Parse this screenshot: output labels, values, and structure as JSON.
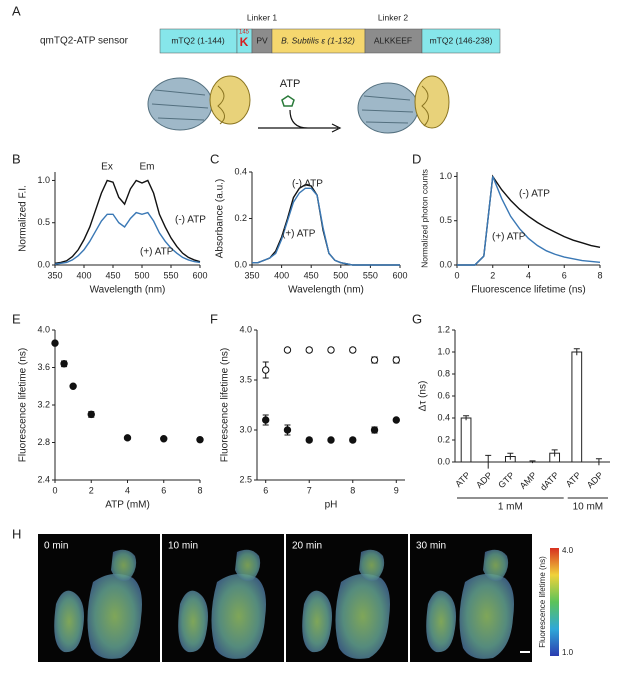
{
  "panel_labels": [
    "A",
    "B",
    "C",
    "D",
    "E",
    "F",
    "G",
    "H"
  ],
  "construct": {
    "name": "qmTQ2-ATP sensor",
    "linker1": "Linker 1",
    "linker2": "Linker 2",
    "segments": [
      "mTQ2 (1-144)",
      "K",
      "PV",
      "B. Subtilis ε (1-132)",
      "ALKKEEF",
      "mTQ2 (146-238)"
    ],
    "residue": "145",
    "ligand": "ATP"
  },
  "chart_data": [
    {
      "type": "line",
      "panel": "B",
      "x_label": "Wavelength (nm)",
      "y_label": "Normalized F.I.",
      "annotations": [
        "Ex",
        "Em"
      ],
      "x": [
        350,
        360,
        370,
        380,
        390,
        400,
        410,
        420,
        430,
        440,
        450,
        460,
        470,
        480,
        490,
        500,
        510,
        520,
        530,
        540,
        550,
        560,
        570,
        580,
        590,
        600
      ],
      "series": [
        {
          "name": "(-) ATP",
          "color": "#111111",
          "values": [
            0.02,
            0.03,
            0.05,
            0.1,
            0.18,
            0.3,
            0.45,
            0.65,
            0.85,
            1.0,
            0.98,
            0.8,
            0.72,
            0.9,
            1.0,
            0.97,
            1.0,
            0.85,
            0.6,
            0.45,
            0.32,
            0.22,
            0.14,
            0.09,
            0.06,
            0.04
          ]
        },
        {
          "name": "(+) ATP",
          "color": "#3a78b5",
          "values": [
            0.01,
            0.02,
            0.03,
            0.06,
            0.11,
            0.18,
            0.28,
            0.4,
            0.52,
            0.6,
            0.6,
            0.5,
            0.45,
            0.55,
            0.62,
            0.6,
            0.62,
            0.52,
            0.38,
            0.28,
            0.2,
            0.14,
            0.09,
            0.06,
            0.04,
            0.03
          ]
        }
      ],
      "xlim": [
        350,
        600
      ],
      "xticks": [
        350,
        400,
        450,
        500,
        550,
        600
      ],
      "ylim": [
        0,
        1.1
      ],
      "yticks": [
        {
          "value": 0,
          "label": "0.0"
        },
        0.5,
        {
          "value": 1,
          "label": "1.0"
        }
      ]
    },
    {
      "type": "line",
      "panel": "C",
      "x_label": "Wavelength (nm)",
      "y_label": "Absorbance (a.u.)",
      "x": [
        350,
        360,
        370,
        380,
        390,
        400,
        410,
        420,
        430,
        440,
        450,
        460,
        470,
        480,
        490,
        500,
        510,
        520,
        530,
        540,
        550,
        560,
        570,
        580,
        590,
        600
      ],
      "series": [
        {
          "name": "(-) ATP",
          "color": "#111111",
          "values": [
            0.01,
            0.01,
            0.02,
            0.03,
            0.06,
            0.12,
            0.2,
            0.29,
            0.33,
            0.345,
            0.34,
            0.3,
            0.15,
            0.05,
            0.02,
            0.01,
            0.005,
            0,
            0,
            0,
            0,
            0,
            0,
            0,
            0,
            0
          ]
        },
        {
          "name": "(+) ATP",
          "color": "#3a78b5",
          "values": [
            0.01,
            0.01,
            0.02,
            0.03,
            0.05,
            0.11,
            0.19,
            0.27,
            0.31,
            0.33,
            0.33,
            0.3,
            0.16,
            0.05,
            0.02,
            0.01,
            0.005,
            0,
            0,
            0,
            0,
            0,
            0,
            0,
            0,
            0
          ]
        }
      ],
      "xlim": [
        350,
        600
      ],
      "xticks": [
        350,
        400,
        450,
        500,
        550,
        600
      ],
      "ylim": [
        0,
        0.4
      ],
      "yticks": [
        {
          "value": 0,
          "label": "0.0"
        },
        0.2,
        0.4
      ]
    },
    {
      "type": "line",
      "panel": "D",
      "x_label": "Fluorescence lifetime (ns)",
      "y_label": "Normalized photon counts",
      "x": [
        0,
        0.5,
        1,
        1.5,
        2,
        2.5,
        3,
        3.5,
        4,
        4.5,
        5,
        5.5,
        6,
        6.5,
        7,
        7.5,
        8
      ],
      "series": [
        {
          "name": "(-) ATP",
          "color": "#111111",
          "values": [
            0,
            0,
            0,
            0.1,
            1.0,
            0.85,
            0.73,
            0.63,
            0.55,
            0.48,
            0.42,
            0.37,
            0.32,
            0.28,
            0.25,
            0.22,
            0.2
          ]
        },
        {
          "name": "(+) ATP",
          "color": "#3a78b5",
          "values": [
            0,
            0,
            0,
            0.1,
            1.0,
            0.75,
            0.55,
            0.41,
            0.3,
            0.22,
            0.16,
            0.12,
            0.09,
            0.07,
            0.05,
            0.04,
            0.03
          ]
        }
      ],
      "xlim": [
        0,
        8
      ],
      "xticks": [
        0,
        2,
        4,
        6,
        8
      ],
      "ylim": [
        0,
        1.05
      ],
      "yticks": [
        {
          "value": 0,
          "label": "0.0"
        },
        0.5,
        {
          "value": 1,
          "label": "1.0"
        }
      ]
    },
    {
      "type": "scatter",
      "panel": "E",
      "x_label": "ATP (mM)",
      "y_label": "Fluorescence lifetime (ns)",
      "x": [
        0,
        0.5,
        1,
        2,
        4,
        6,
        8
      ],
      "series": [
        {
          "color": "#111111",
          "filled": true,
          "values": [
            3.86,
            3.64,
            3.4,
            3.1,
            2.85,
            2.84,
            2.83
          ],
          "errors": [
            0.01,
            0.03,
            0.01,
            0.03,
            0.01,
            0.01,
            0.02
          ]
        }
      ],
      "xlim": [
        0,
        8
      ],
      "xticks": [
        0,
        2,
        4,
        6,
        8
      ],
      "ylim": [
        2.4,
        4.0
      ],
      "yticks": [
        2.4,
        2.8,
        3.2,
        3.6,
        {
          "value": 4,
          "label": "4.0"
        }
      ]
    },
    {
      "type": "scatter",
      "panel": "F",
      "x_label": "pH",
      "y_label": "Fluorescence lifetime (ns)",
      "x": [
        6,
        6.5,
        7,
        7.5,
        8,
        8.5,
        9
      ],
      "series": [
        {
          "color": "#111111",
          "filled": false,
          "values": [
            3.6,
            3.8,
            3.8,
            3.8,
            3.8,
            3.7,
            3.7
          ],
          "errors": [
            0.08,
            0.01,
            0.02,
            0.02,
            0.02,
            0.03,
            0.03
          ]
        },
        {
          "color": "#111111",
          "filled": true,
          "values": [
            3.1,
            3.0,
            2.9,
            2.9,
            2.9,
            3.0,
            3.1
          ],
          "errors": [
            0.05,
            0.05,
            0.02,
            0.01,
            0.02,
            0.03,
            0.01
          ]
        }
      ],
      "xlim": [
        5.8,
        9.2
      ],
      "xticks": [
        6,
        7,
        8,
        9
      ],
      "ylim": [
        2.5,
        4.0
      ],
      "yticks": [
        2.5,
        {
          "value": 3,
          "label": "3.0"
        },
        3.5,
        {
          "value": 4,
          "label": "4.0"
        }
      ]
    },
    {
      "type": "bar",
      "panel": "G",
      "y_label": "Δτ (ns)",
      "categories": [
        "ATP",
        "ADP",
        "GTP",
        "AMP",
        "dATP",
        "ATP",
        "ADP"
      ],
      "groups": [
        "1 mM",
        "10 mM"
      ],
      "values": [
        0.4,
        0.0,
        0.05,
        0.0,
        0.08,
        1.0,
        0.0
      ],
      "errors": [
        0.02,
        0.06,
        0.03,
        0.01,
        0.03,
        0.03,
        0.03
      ],
      "color": "#ffffff",
      "ylim": [
        0,
        1.2
      ],
      "yticks": [
        {
          "value": 0,
          "label": "0.0"
        },
        0.2,
        0.4,
        0.6,
        0.8,
        {
          "value": 1,
          "label": "1.0"
        },
        1.2
      ]
    }
  ],
  "imaging": {
    "times": [
      "0 min",
      "10 min",
      "20 min",
      "30 min"
    ],
    "colorbar_label": "Fluorescence lifetime (ns)",
    "colorbar_max": "4.0",
    "colorbar_min": "1.0"
  }
}
